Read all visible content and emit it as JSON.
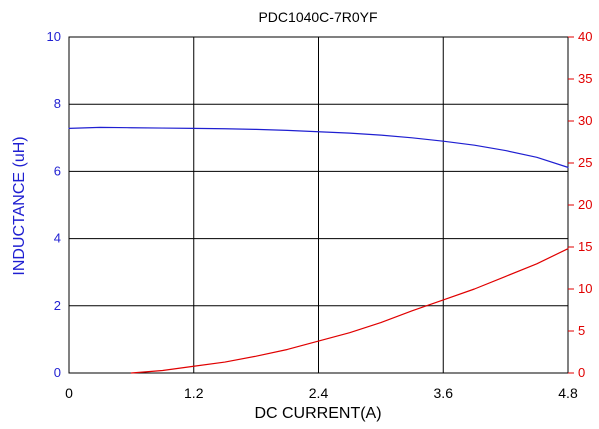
{
  "chart_data": {
    "type": "line",
    "title": "PDC1040C-7R0YF",
    "xlabel": "DC CURRENT(A)",
    "ylabel": "INDUCTANCE (uH)",
    "y2label": "",
    "xlim": [
      0,
      4.8
    ],
    "ylim": [
      0,
      10
    ],
    "y2lim": [
      0,
      40
    ],
    "xticks": [
      "0",
      "1.2",
      "2.4",
      "3.6",
      "4.8"
    ],
    "yticks": [
      "0",
      "2",
      "4",
      "6",
      "8",
      "10"
    ],
    "y2ticks": [
      "0",
      "5",
      "10",
      "15",
      "20",
      "25",
      "30",
      "35",
      "40"
    ],
    "grid": true,
    "colors": {
      "series_1": "#1f1fd1",
      "series_2": "#e00000",
      "axis": "#000000",
      "grid": "#000000"
    },
    "series": [
      {
        "axis": "left",
        "x": [
          0,
          0.3,
          0.6,
          0.9,
          1.2,
          1.5,
          1.8,
          2.1,
          2.4,
          2.7,
          3.0,
          3.3,
          3.6,
          3.9,
          4.2,
          4.5,
          4.8
        ],
        "values": [
          7.28,
          7.31,
          7.3,
          7.29,
          7.28,
          7.27,
          7.25,
          7.22,
          7.18,
          7.14,
          7.08,
          7.0,
          6.9,
          6.78,
          6.62,
          6.42,
          6.12
        ]
      },
      {
        "axis": "right",
        "x": [
          0.6,
          0.9,
          1.2,
          1.5,
          1.8,
          2.1,
          2.4,
          2.7,
          3.0,
          3.3,
          3.6,
          3.9,
          4.2,
          4.5,
          4.8
        ],
        "values": [
          0.0,
          0.3,
          0.8,
          1.3,
          2.0,
          2.8,
          3.8,
          4.8,
          6.0,
          7.4,
          8.7,
          10.0,
          11.5,
          13.0,
          14.8
        ]
      }
    ]
  }
}
